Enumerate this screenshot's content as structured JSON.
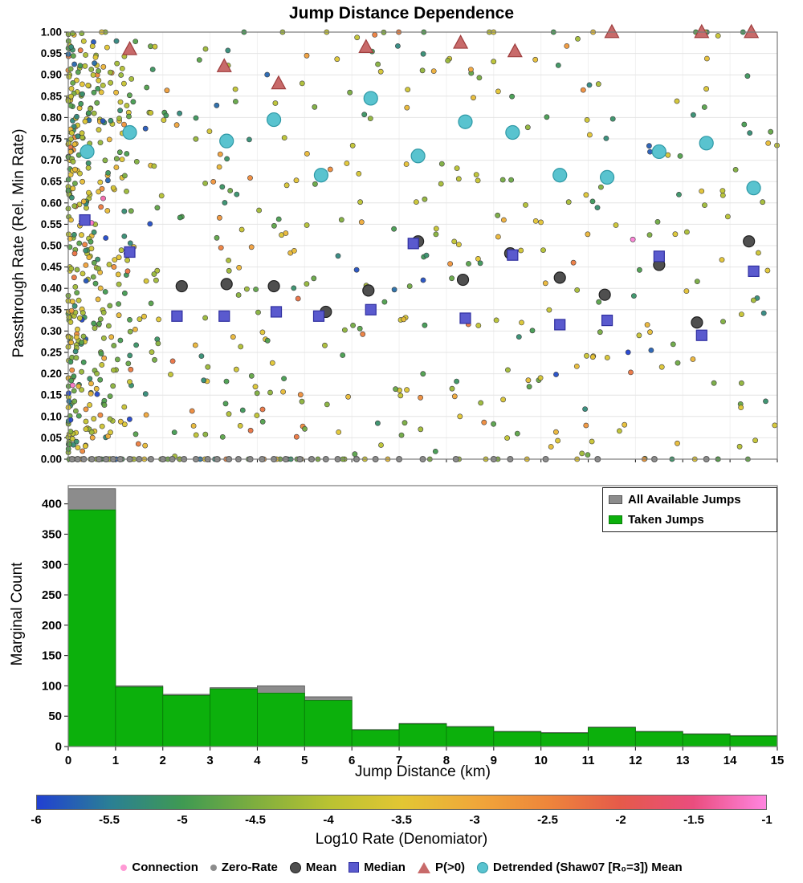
{
  "title": "Jump Distance Dependence",
  "scatter": {
    "ylabel": "Passthrough Rate (Rel. Min Rate)"
  },
  "hist": {
    "ylabel": "Marginal Count",
    "xlabel": "Jump Distance (km)"
  },
  "colorbar": {
    "label": "Log10 Rate (Denomiator)",
    "min": -6,
    "max": -1,
    "tick_values": [
      -6,
      -5.5,
      -5,
      -4.5,
      -4,
      -3.5,
      -3,
      -2.5,
      -2,
      -1.5,
      -1
    ],
    "tick_labels": [
      "-6",
      "-5.5",
      "-5",
      "-4.5",
      "-4",
      "-3.5",
      "-3",
      "-2.5",
      "-2",
      "-1.5",
      "-1"
    ],
    "stops": [
      [
        0.0,
        "#2140d2"
      ],
      [
        0.1,
        "#2a7f95"
      ],
      [
        0.2,
        "#3f9a52"
      ],
      [
        0.3,
        "#7fae3e"
      ],
      [
        0.4,
        "#b9c232"
      ],
      [
        0.5,
        "#e2c633"
      ],
      [
        0.6,
        "#f0a83a"
      ],
      [
        0.7,
        "#ee863b"
      ],
      [
        0.8,
        "#e55a4a"
      ],
      [
        0.9,
        "#ea4d7e"
      ],
      [
        1.0,
        "#ff85e0"
      ]
    ]
  },
  "legend_box": {
    "items": [
      {
        "label": "All Available Jumps",
        "color": "#8c8c8c",
        "edge": "#565656"
      },
      {
        "label": "Taken Jumps",
        "color": "#0cb00c",
        "edge": "#077d07"
      }
    ]
  },
  "legend_bottom": {
    "items": [
      {
        "label": "Connection",
        "marker": "dot",
        "color": "#ff9ad5",
        "edge": "#e070b5"
      },
      {
        "label": "Zero-Rate",
        "marker": "dot",
        "color": "#8c8c8c",
        "edge": "#5a5a5a"
      },
      {
        "label": "Mean",
        "marker": "circle",
        "color": "#4f4f4f",
        "edge": "#1f1f1f"
      },
      {
        "label": "Median",
        "marker": "square",
        "color": "#5a5ace",
        "edge": "#2f2fa0"
      },
      {
        "label": "P(>0)",
        "marker": "triangle",
        "color": "#c86a6a",
        "edge": "#9e3d3d"
      },
      {
        "label": "Detrended (Shaw07 [R₀=3]) Mean",
        "marker": "circle",
        "color": "#59c3cf",
        "edge": "#2f99a6"
      }
    ]
  },
  "chart_data": [
    {
      "type": "scatter",
      "title": "Jump Distance Dependence",
      "xlabel": "Jump Distance (km)",
      "ylabel": "Passthrough Rate (Rel. Min Rate)",
      "xlim": [
        0,
        15
      ],
      "ylim": [
        0,
        1
      ],
      "ytick_step": 0.05,
      "grid": true,
      "color_dimension": "Log10 Rate (Denomiator)",
      "series": [
        {
          "name": "Zero-Rate",
          "marker": "dot",
          "size": 3.4,
          "color": "#969696",
          "edge": "#5a5a5a",
          "x": [
            0.08,
            0.2,
            0.33,
            0.5,
            0.65,
            0.8,
            0.95,
            1.1,
            1.3,
            1.5,
            1.75,
            2.0,
            2.2,
            2.45,
            2.7,
            2.95,
            3.15,
            3.4,
            3.6,
            3.85,
            4.1,
            4.35,
            4.6,
            4.9,
            5.15,
            5.45,
            5.7,
            6.1,
            6.5,
            7.0,
            7.5,
            8.2,
            9.0,
            9.35,
            10.1,
            11.2,
            12.4,
            13.5
          ],
          "y": [
            0,
            0,
            0,
            0,
            0,
            0,
            0,
            0,
            0,
            0,
            0,
            0,
            0,
            0,
            0,
            0,
            0,
            0,
            0,
            0,
            0,
            0,
            0,
            0,
            0,
            0,
            0,
            0,
            0,
            0,
            0,
            0,
            0,
            0,
            0,
            0,
            0,
            0
          ]
        },
        {
          "name": "Mean",
          "marker": "circle",
          "size": 7,
          "color": "#4f4f4f",
          "edge": "#1f1f1f",
          "x": [
            2.4,
            3.35,
            4.35,
            5.45,
            6.35,
            7.4,
            8.35,
            9.35,
            10.4,
            11.35,
            12.5,
            13.3,
            14.4
          ],
          "y": [
            0.405,
            0.41,
            0.405,
            0.345,
            0.395,
            0.51,
            0.42,
            0.482,
            0.425,
            0.385,
            0.455,
            0.32,
            0.51
          ]
        },
        {
          "name": "Median",
          "marker": "square",
          "size": 6.5,
          "color": "#5a5ace",
          "edge": "#2f2fa0",
          "x": [
            0.35,
            1.3,
            2.3,
            3.3,
            4.4,
            5.3,
            6.4,
            7.3,
            8.4,
            9.4,
            10.4,
            11.4,
            12.5,
            13.4,
            14.5
          ],
          "y": [
            0.56,
            0.485,
            0.335,
            0.335,
            0.345,
            0.335,
            0.35,
            0.505,
            0.33,
            0.478,
            0.315,
            0.325,
            0.475,
            0.29,
            0.44
          ]
        },
        {
          "name": "P(>0)",
          "marker": "triangle",
          "size": 9,
          "color": "#c86a6a",
          "edge": "#9e3d3d",
          "x": [
            1.3,
            3.3,
            4.45,
            6.3,
            8.3,
            9.45,
            11.5,
            13.4,
            14.45
          ],
          "y": [
            0.96,
            0.92,
            0.88,
            0.965,
            0.975,
            0.955,
            1.0,
            1.0,
            1.0
          ]
        },
        {
          "name": "Detrended (Shaw07 [R₀=3]) Mean",
          "marker": "circle",
          "size": 8.5,
          "color": "#59c3cf",
          "edge": "#2f99a6",
          "x": [
            0.4,
            1.3,
            3.35,
            4.35,
            5.35,
            6.4,
            7.4,
            8.4,
            9.4,
            10.4,
            11.4,
            12.5,
            13.5,
            14.5
          ],
          "y": [
            0.72,
            0.765,
            0.745,
            0.795,
            0.665,
            0.845,
            0.71,
            0.79,
            0.765,
            0.665,
            0.66,
            0.72,
            0.74,
            0.635
          ]
        }
      ],
      "background_cloud": {
        "seed": 42,
        "left_band": 300,
        "field": 470,
        "zero_row": 60,
        "top_row": 16
      }
    },
    {
      "type": "bar",
      "xlabel": "Jump Distance (km)",
      "ylabel": "Marginal Count",
      "bin_edges": [
        0,
        1,
        2,
        3,
        4,
        5,
        6,
        7,
        8,
        9,
        10,
        11,
        12,
        13,
        14,
        15
      ],
      "xlim": [
        0,
        15
      ],
      "ylim": [
        0,
        430
      ],
      "yticks": [
        0,
        50,
        100,
        150,
        200,
        250,
        300,
        350,
        400
      ],
      "xticks": [
        0,
        1,
        2,
        3,
        4,
        5,
        6,
        7,
        8,
        9,
        10,
        11,
        12,
        13,
        14,
        15
      ],
      "legend_position": "upper right",
      "series": [
        {
          "name": "All Available Jumps",
          "color": "#8c8c8c",
          "edge": "#565656",
          "values": [
            425,
            100,
            86,
            97,
            100,
            82,
            28,
            38,
            33,
            25,
            23,
            32,
            25,
            21,
            18
          ]
        },
        {
          "name": "Taken Jumps",
          "color": "#0cb00c",
          "edge": "#077d07",
          "values": [
            390,
            98,
            84,
            95,
            88,
            76,
            27,
            37,
            32,
            24,
            22,
            31,
            24,
            20,
            17
          ]
        }
      ]
    }
  ]
}
